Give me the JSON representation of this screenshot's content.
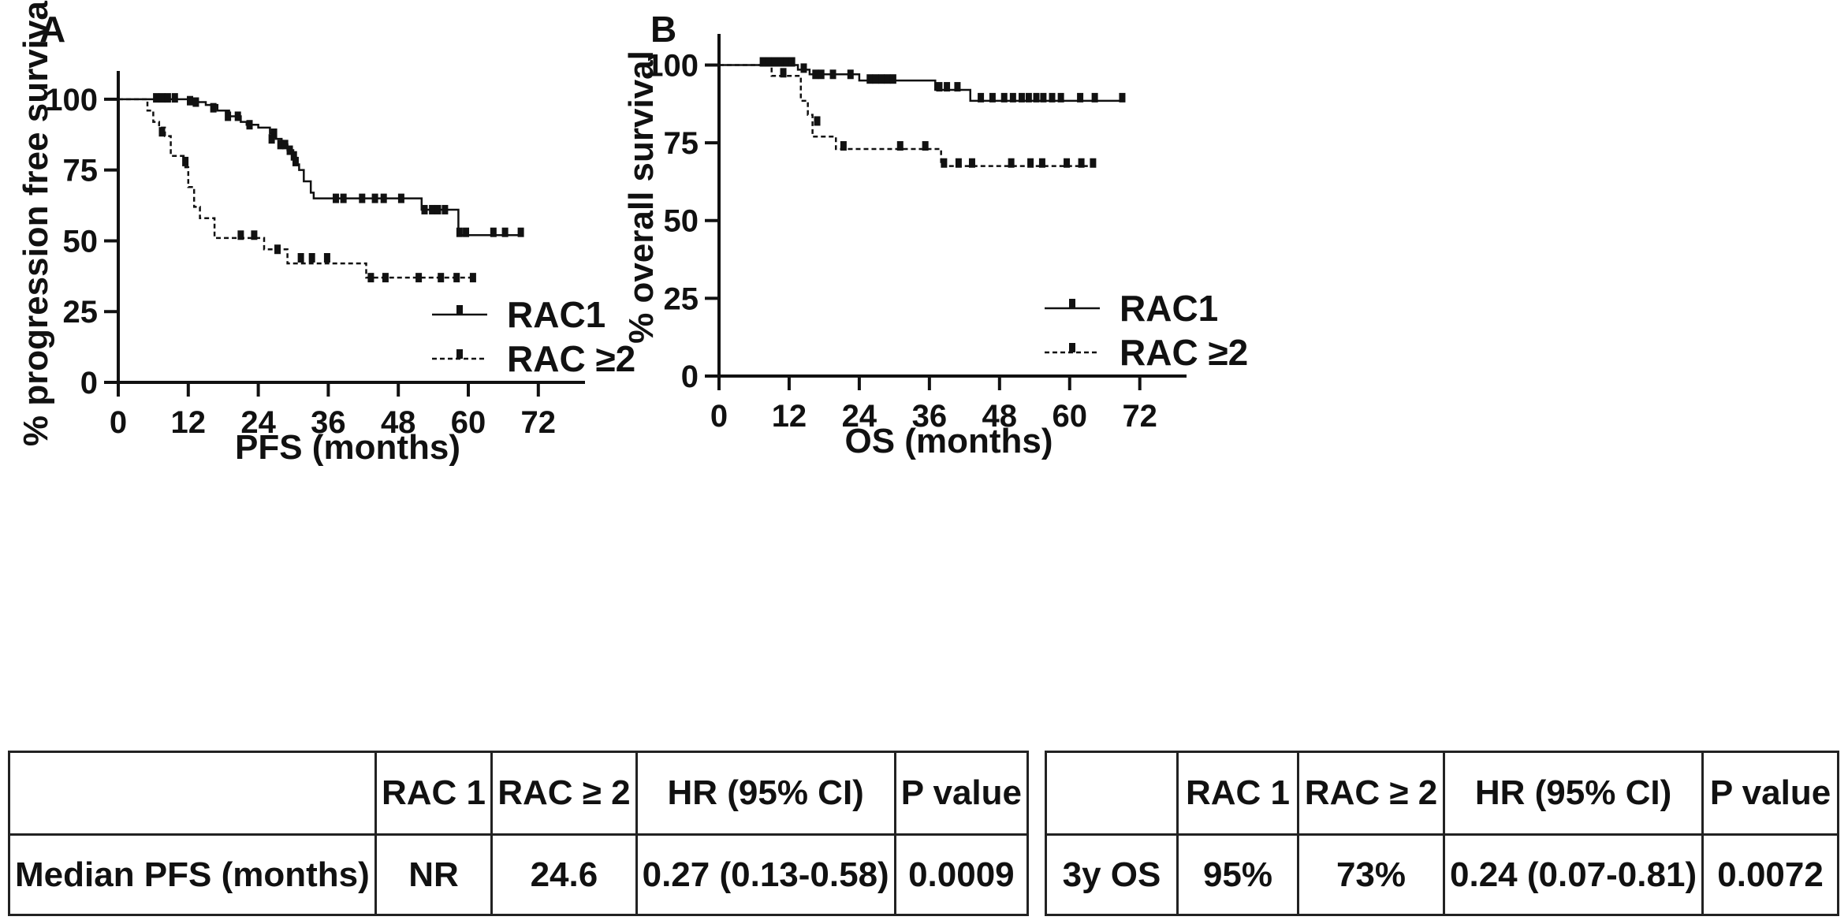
{
  "chart_data": [
    {
      "panel": "A",
      "type": "line",
      "xlabel": "PFS (months)",
      "ylabel": "% progression free survival",
      "xlim": [
        0,
        80
      ],
      "ylim": [
        0,
        110
      ],
      "xticks": [
        0,
        12,
        24,
        36,
        48,
        60,
        72
      ],
      "yticks": [
        0,
        25,
        50,
        75,
        100
      ],
      "legend_position": "lower-right",
      "series": [
        {
          "name": "RAC1",
          "style": "solid",
          "steps": [
            [
              0,
              100
            ],
            [
              10,
              100
            ],
            [
              12,
              99
            ],
            [
              15,
              98
            ],
            [
              17,
              96
            ],
            [
              19,
              94
            ],
            [
              21,
              92
            ],
            [
              22,
              91
            ],
            [
              24,
              90
            ],
            [
              26,
              88
            ],
            [
              27,
              86
            ],
            [
              28,
              84
            ],
            [
              29,
              82
            ],
            [
              30,
              79
            ],
            [
              30.6,
              77
            ],
            [
              31,
              75
            ],
            [
              31.8,
              71
            ],
            [
              33,
              67
            ],
            [
              33.5,
              65
            ],
            [
              52,
              65
            ],
            [
              52,
              61
            ],
            [
              58,
              61
            ],
            [
              58.3,
              52
            ],
            [
              69,
              52
            ]
          ],
          "censors": [
            [
              6.5,
              100.5
            ],
            [
              7.5,
              100.5
            ],
            [
              8.5,
              100.5
            ],
            [
              9.7,
              100.5
            ],
            [
              12.3,
              99.5
            ],
            [
              13.3,
              99
            ],
            [
              16.3,
              97
            ],
            [
              18.8,
              94
            ],
            [
              20.5,
              94
            ],
            [
              22.5,
              91
            ],
            [
              26.7,
              88
            ],
            [
              26.3,
              86
            ],
            [
              27.8,
              84
            ],
            [
              28.6,
              84
            ],
            [
              29.4,
              82
            ],
            [
              30.1,
              80
            ],
            [
              30.4,
              78
            ],
            [
              37.3,
              65
            ],
            [
              38.6,
              65
            ],
            [
              41.8,
              65
            ],
            [
              44,
              65
            ],
            [
              45.5,
              65
            ],
            [
              48.5,
              65
            ],
            [
              52.5,
              61
            ],
            [
              53.8,
              61
            ],
            [
              54.8,
              61
            ],
            [
              56,
              61
            ],
            [
              58.5,
              53
            ],
            [
              59.6,
              53
            ],
            [
              64.3,
              53
            ],
            [
              66.3,
              53
            ],
            [
              69,
              53
            ]
          ]
        },
        {
          "name": "RAC ≥2",
          "style": "dashed",
          "steps": [
            [
              0,
              100
            ],
            [
              4,
              100
            ],
            [
              5,
              96
            ],
            [
              6,
              92
            ],
            [
              7,
              90
            ],
            [
              8,
              87
            ],
            [
              9,
              80
            ],
            [
              11,
              80
            ],
            [
              11.5,
              76
            ],
            [
              12,
              69
            ],
            [
              13,
              62
            ],
            [
              14,
              58
            ],
            [
              16,
              58
            ],
            [
              16.5,
              51
            ],
            [
              24,
              51
            ],
            [
              25,
              47
            ],
            [
              28,
              47
            ],
            [
              29,
              42
            ],
            [
              42,
              42
            ],
            [
              42.5,
              37
            ],
            [
              61,
              37
            ]
          ],
          "censors": [
            [
              7.5,
              88.5
            ],
            [
              11.5,
              78
            ],
            [
              21,
              52
            ],
            [
              23.3,
              52
            ],
            [
              27.3,
              47
            ],
            [
              31.3,
              44
            ],
            [
              33.2,
              44
            ],
            [
              35.8,
              44
            ],
            [
              43.3,
              37
            ],
            [
              45.8,
              37
            ],
            [
              51.5,
              37
            ],
            [
              55.3,
              37
            ],
            [
              58,
              37
            ],
            [
              60.8,
              37
            ]
          ]
        }
      ]
    },
    {
      "panel": "B",
      "type": "line",
      "xlabel": "OS (months)",
      "ylabel": "% overall survival",
      "xlim": [
        0,
        80
      ],
      "ylim": [
        0,
        110
      ],
      "xticks": [
        0,
        12,
        24,
        36,
        48,
        60,
        72
      ],
      "yticks": [
        0,
        25,
        50,
        75,
        100
      ],
      "legend_position": "lower-right",
      "series": [
        {
          "name": "RAC1",
          "style": "solid",
          "steps": [
            [
              0,
              100
            ],
            [
              13.5,
              100
            ],
            [
              13.5,
              98.5
            ],
            [
              15.5,
              98.5
            ],
            [
              15.5,
              97
            ],
            [
              24,
              97
            ],
            [
              24,
              95
            ],
            [
              37,
              95
            ],
            [
              37,
              92
            ],
            [
              43,
              92
            ],
            [
              43,
              88.5
            ],
            [
              69,
              88.5
            ]
          ],
          "censors": [
            [
              7.5,
              101
            ],
            [
              8.5,
              101
            ],
            [
              9.5,
              101
            ],
            [
              10.5,
              101
            ],
            [
              11.5,
              101
            ],
            [
              12.5,
              101
            ],
            [
              14.5,
              99
            ],
            [
              16.5,
              97
            ],
            [
              17.5,
              97
            ],
            [
              19.5,
              97
            ],
            [
              22.5,
              97
            ],
            [
              25.8,
              95.5
            ],
            [
              26.8,
              95.5
            ],
            [
              27.8,
              95.5
            ],
            [
              28.8,
              95.5
            ],
            [
              29.8,
              95.5
            ],
            [
              37.7,
              93
            ],
            [
              39,
              93
            ],
            [
              40.8,
              93
            ],
            [
              44.8,
              89.5
            ],
            [
              46.8,
              89.5
            ],
            [
              48.8,
              89.5
            ],
            [
              50.3,
              89.5
            ],
            [
              51.8,
              89.5
            ],
            [
              53,
              89.5
            ],
            [
              54.3,
              89.5
            ],
            [
              55.5,
              89.5
            ],
            [
              57,
              89.5
            ],
            [
              58.5,
              89.5
            ],
            [
              61.8,
              89.5
            ],
            [
              64.3,
              89.5
            ],
            [
              69,
              89.5
            ]
          ]
        },
        {
          "name": "RAC ≥2",
          "style": "dashed",
          "steps": [
            [
              0,
              100
            ],
            [
              9,
              100
            ],
            [
              9,
              96.5
            ],
            [
              14,
              96.5
            ],
            [
              14,
              88.5
            ],
            [
              15.2,
              88.5
            ],
            [
              15.2,
              84
            ],
            [
              16,
              84
            ],
            [
              16,
              77
            ],
            [
              20,
              77
            ],
            [
              20,
              73
            ],
            [
              38,
              73
            ],
            [
              38,
              67.5
            ],
            [
              64,
              67.5
            ]
          ],
          "censors": [
            [
              11,
              97.5
            ],
            [
              16.8,
              82
            ],
            [
              21.3,
              74
            ],
            [
              31,
              74
            ],
            [
              35.3,
              74
            ],
            [
              38.5,
              68.5
            ],
            [
              41,
              68.5
            ],
            [
              43.3,
              68.5
            ],
            [
              50,
              68.5
            ],
            [
              53.3,
              68.5
            ],
            [
              55.3,
              68.5
            ],
            [
              59.5,
              68.5
            ],
            [
              62,
              68.5
            ],
            [
              64,
              68.5
            ]
          ]
        }
      ]
    }
  ],
  "panel_letters": {
    "a": "A",
    "b": "B"
  },
  "table_pfs": {
    "headers": [
      "",
      "RAC 1",
      "RAC ≥ 2",
      "HR (95% CI)",
      "P value"
    ],
    "row": [
      "Median PFS (months)",
      "NR",
      "24.6",
      "0.27 (0.13-0.58)",
      "0.0009"
    ]
  },
  "table_os": {
    "headers": [
      "",
      "RAC 1",
      "RAC ≥ 2",
      "HR (95% CI)",
      "P value"
    ],
    "row": [
      "3y OS",
      "95%",
      "73%",
      "0.24 (0.07-0.81)",
      "0.0072"
    ]
  }
}
